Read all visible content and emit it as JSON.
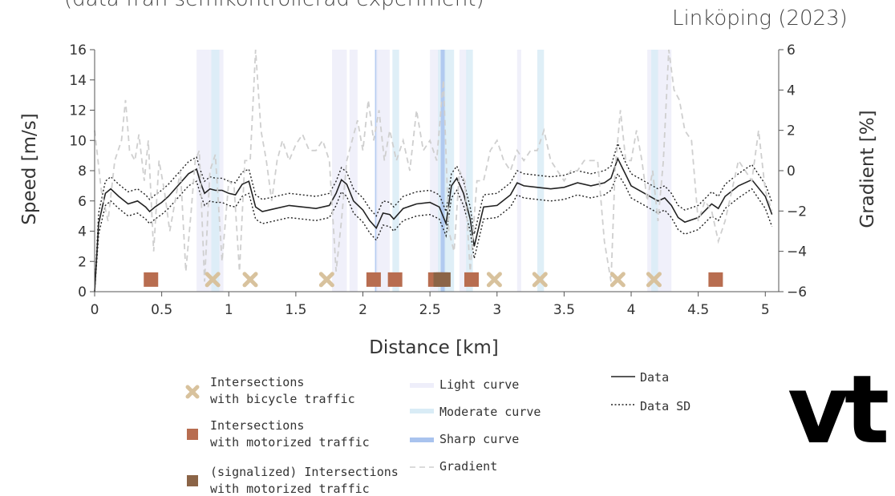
{
  "header": {
    "subtitle": "(data från semikontrollerad experiment)",
    "location_year": "Linköping (2023)"
  },
  "logo": {
    "text": "vt"
  },
  "colors": {
    "bicycle": "#d8c29d",
    "motorized": "#b86d50",
    "signalized": "#8b6447",
    "light_curve": "#eeeefa",
    "moderate_curve": "#d9ecf6",
    "sharp_curve": "#a9c3ee",
    "gradient": "#cfcfcf",
    "data": "#222222"
  },
  "chart_data": {
    "type": "line",
    "xlabel": "Distance [km]",
    "ylabel": "Speed [m/s]",
    "y2label": "Gradient [%]",
    "xlim": [
      0,
      5.1
    ],
    "ylim": [
      0,
      16
    ],
    "y2lim": [
      -6,
      6
    ],
    "xticks": [
      0,
      0.5,
      1,
      1.5,
      2,
      2.5,
      3,
      3.5,
      4,
      4.5,
      5
    ],
    "xtick_labels": [
      "0",
      "0.5",
      "1",
      "1.5",
      "2",
      "2.5",
      "3",
      "3.5",
      "4",
      "4.5",
      "5"
    ],
    "yticks": [
      0,
      2,
      4,
      6,
      8,
      10,
      12,
      14,
      16
    ],
    "ytick_labels": [
      "0",
      "2",
      "4",
      "6",
      "8",
      "10",
      "12",
      "14",
      "16"
    ],
    "y2ticks": [
      -6,
      -4,
      -2,
      0,
      2,
      4,
      6
    ],
    "y2tick_labels": [
      "−6",
      "−4",
      "−2",
      "0",
      "2",
      "4",
      "6"
    ],
    "grid": false,
    "legend_position": "bottom",
    "series": [
      {
        "name": "Data",
        "axis": "left",
        "style": "solid",
        "x": [
          0,
          0.03,
          0.08,
          0.12,
          0.18,
          0.25,
          0.32,
          0.38,
          0.41,
          0.45,
          0.5,
          0.55,
          0.62,
          0.7,
          0.76,
          0.79,
          0.82,
          0.86,
          0.9,
          0.95,
          1.0,
          1.05,
          1.1,
          1.15,
          1.2,
          1.25,
          1.35,
          1.45,
          1.55,
          1.65,
          1.75,
          1.8,
          1.84,
          1.88,
          1.93,
          2.0,
          2.05,
          2.1,
          2.15,
          2.2,
          2.23,
          2.3,
          2.4,
          2.5,
          2.57,
          2.62,
          2.66,
          2.7,
          2.75,
          2.8,
          2.83,
          2.9,
          3.0,
          3.1,
          3.15,
          3.2,
          3.3,
          3.4,
          3.5,
          3.6,
          3.7,
          3.8,
          3.85,
          3.9,
          3.95,
          4.0,
          4.1,
          4.2,
          4.25,
          4.3,
          4.35,
          4.4,
          4.5,
          4.6,
          4.65,
          4.7,
          4.8,
          4.9,
          5.0,
          5.05
        ],
        "y": [
          0,
          4.5,
          6.5,
          6.8,
          6.3,
          5.8,
          6.0,
          5.6,
          5.3,
          5.6,
          5.9,
          6.3,
          7.0,
          7.8,
          8.1,
          7.2,
          6.5,
          6.8,
          6.7,
          6.7,
          6.5,
          6.4,
          7.1,
          7.3,
          5.6,
          5.3,
          5.5,
          5.7,
          5.6,
          5.5,
          5.7,
          6.5,
          7.4,
          7.1,
          6.0,
          5.4,
          4.7,
          4.2,
          5.2,
          5.1,
          4.8,
          5.5,
          5.8,
          5.9,
          5.6,
          4.5,
          7.0,
          7.5,
          6.5,
          4.8,
          3.0,
          5.6,
          5.7,
          6.4,
          7.2,
          7.0,
          6.9,
          6.8,
          6.9,
          7.2,
          7.0,
          7.2,
          7.5,
          8.8,
          7.9,
          7.0,
          6.5,
          6.0,
          6.2,
          5.7,
          4.9,
          4.6,
          4.9,
          5.8,
          5.5,
          6.3,
          7.0,
          7.4,
          6.3,
          5.1
        ]
      },
      {
        "name": "Data SD",
        "axis": "left",
        "style": "dotted",
        "x": [
          0,
          0.03,
          0.08,
          0.12,
          0.18,
          0.25,
          0.32,
          0.38,
          0.41,
          0.45,
          0.5,
          0.55,
          0.62,
          0.7,
          0.76,
          0.79,
          0.82,
          0.86,
          0.9,
          0.95,
          1.0,
          1.05,
          1.1,
          1.15,
          1.2,
          1.25,
          1.35,
          1.45,
          1.55,
          1.65,
          1.75,
          1.8,
          1.84,
          1.88,
          1.93,
          2.0,
          2.05,
          2.1,
          2.15,
          2.2,
          2.23,
          2.3,
          2.4,
          2.5,
          2.57,
          2.62,
          2.66,
          2.7,
          2.75,
          2.8,
          2.83,
          2.9,
          3.0,
          3.1,
          3.15,
          3.2,
          3.3,
          3.4,
          3.5,
          3.6,
          3.7,
          3.8,
          3.85,
          3.9,
          3.95,
          4.0,
          4.1,
          4.2,
          4.25,
          4.3,
          4.35,
          4.4,
          4.5,
          4.6,
          4.65,
          4.7,
          4.8,
          4.9,
          5.0,
          5.05
        ],
        "y": [
          0,
          5.2,
          7.3,
          7.6,
          7.1,
          6.6,
          6.8,
          6.4,
          6.1,
          6.4,
          6.7,
          7.1,
          7.8,
          8.6,
          8.9,
          8.0,
          7.3,
          7.6,
          7.5,
          7.5,
          7.3,
          7.2,
          7.9,
          8.1,
          6.4,
          6.1,
          6.3,
          6.5,
          6.4,
          6.3,
          6.5,
          7.3,
          8.2,
          7.9,
          6.8,
          6.2,
          5.5,
          5.0,
          6.0,
          5.9,
          5.6,
          6.3,
          6.6,
          6.7,
          6.4,
          5.3,
          7.8,
          8.3,
          7.3,
          5.6,
          3.8,
          6.4,
          6.5,
          7.2,
          8.0,
          7.8,
          7.7,
          7.6,
          7.7,
          8.0,
          7.8,
          8.0,
          8.3,
          9.8,
          8.7,
          7.8,
          7.3,
          6.8,
          7.0,
          6.5,
          5.7,
          5.4,
          5.7,
          6.6,
          6.3,
          7.1,
          7.8,
          8.4,
          7.1,
          5.9
        ]
      },
      {
        "name": "Data SD",
        "axis": "left",
        "style": "dotted",
        "x": [
          0,
          0.03,
          0.08,
          0.12,
          0.18,
          0.25,
          0.32,
          0.38,
          0.41,
          0.45,
          0.5,
          0.55,
          0.62,
          0.7,
          0.76,
          0.79,
          0.82,
          0.86,
          0.9,
          0.95,
          1.0,
          1.05,
          1.1,
          1.15,
          1.2,
          1.25,
          1.35,
          1.45,
          1.55,
          1.65,
          1.75,
          1.8,
          1.84,
          1.88,
          1.93,
          2.0,
          2.05,
          2.1,
          2.15,
          2.2,
          2.23,
          2.3,
          2.4,
          2.5,
          2.57,
          2.62,
          2.66,
          2.7,
          2.75,
          2.8,
          2.83,
          2.9,
          3.0,
          3.1,
          3.15,
          3.2,
          3.3,
          3.4,
          3.5,
          3.6,
          3.7,
          3.8,
          3.85,
          3.9,
          3.95,
          4.0,
          4.1,
          4.2,
          4.25,
          4.3,
          4.35,
          4.4,
          4.5,
          4.6,
          4.65,
          4.7,
          4.8,
          4.9,
          5.0,
          5.05
        ],
        "y": [
          0,
          3.8,
          5.7,
          6.0,
          5.5,
          5.0,
          5.2,
          4.8,
          4.5,
          4.8,
          5.1,
          5.5,
          6.2,
          7.0,
          7.3,
          6.4,
          5.7,
          6.0,
          5.9,
          5.9,
          5.7,
          5.6,
          6.3,
          6.5,
          4.8,
          4.5,
          4.7,
          4.9,
          4.8,
          4.7,
          4.9,
          5.7,
          6.6,
          6.3,
          5.2,
          4.6,
          3.9,
          3.4,
          4.4,
          4.3,
          4.0,
          4.7,
          5.0,
          5.1,
          4.8,
          3.7,
          6.2,
          6.7,
          5.7,
          4.0,
          2.2,
          4.8,
          4.9,
          5.6,
          6.4,
          6.2,
          6.1,
          6.0,
          6.1,
          6.4,
          6.2,
          6.4,
          6.7,
          7.8,
          7.1,
          6.2,
          5.7,
          5.2,
          5.4,
          4.9,
          4.1,
          3.8,
          4.1,
          5.0,
          4.7,
          5.5,
          6.2,
          6.8,
          5.5,
          4.3
        ]
      },
      {
        "name": "Gradient",
        "axis": "right",
        "style": "dashed",
        "x": [
          0,
          0.05,
          0.1,
          0.15,
          0.2,
          0.23,
          0.26,
          0.3,
          0.33,
          0.37,
          0.4,
          0.44,
          0.48,
          0.52,
          0.56,
          0.6,
          0.64,
          0.68,
          0.72,
          0.75,
          0.78,
          0.82,
          0.86,
          0.9,
          0.95,
          1.0,
          1.04,
          1.08,
          1.12,
          1.16,
          1.2,
          1.24,
          1.28,
          1.32,
          1.36,
          1.4,
          1.45,
          1.5,
          1.55,
          1.6,
          1.65,
          1.7,
          1.75,
          1.8,
          1.84,
          1.88,
          1.92,
          1.96,
          2.0,
          2.04,
          2.08,
          2.12,
          2.16,
          2.2,
          2.25,
          2.3,
          2.35,
          2.4,
          2.45,
          2.5,
          2.55,
          2.6,
          2.64,
          2.68,
          2.72,
          2.76,
          2.8,
          2.85,
          2.9,
          2.95,
          3.0,
          3.05,
          3.1,
          3.15,
          3.2,
          3.25,
          3.3,
          3.35,
          3.4,
          3.45,
          3.5,
          3.55,
          3.6,
          3.65,
          3.7,
          3.75,
          3.8,
          3.85,
          3.88,
          3.92,
          3.96,
          4.0,
          4.04,
          4.08,
          4.12,
          4.16,
          4.2,
          4.24,
          4.28,
          4.32,
          4.36,
          4.4,
          4.45,
          4.5,
          4.55,
          4.6,
          4.65,
          4.7,
          4.75,
          4.8,
          4.85,
          4.9,
          4.95,
          5.0,
          5.05
        ],
        "y": [
          2.0,
          -1.0,
          -2.5,
          0.5,
          1.5,
          3.5,
          1.0,
          0.5,
          1.8,
          -0.5,
          1.5,
          -4.0,
          0.5,
          -1.0,
          -3.0,
          -1.5,
          0.0,
          -5.0,
          -2.0,
          0.5,
          1.0,
          -5.5,
          0.0,
          0.8,
          -4.5,
          -0.5,
          -0.8,
          -5.0,
          0.5,
          0.5,
          6.0,
          2.0,
          0.5,
          -1.5,
          0.5,
          1.5,
          0.5,
          1.3,
          1.8,
          1.0,
          1.0,
          1.5,
          0.5,
          -5.0,
          -2.5,
          0.5,
          1.5,
          2.5,
          1.0,
          3.5,
          1.5,
          3.0,
          0.5,
          2.0,
          0.5,
          1.5,
          0.0,
          3.0,
          1.0,
          1.5,
          0.5,
          4.5,
          -3.0,
          -4.0,
          0.0,
          -0.5,
          -5.0,
          -0.5,
          -0.5,
          1.0,
          1.5,
          0.5,
          0.0,
          1.0,
          0.5,
          1.0,
          1.0,
          2.0,
          0.5,
          0.0,
          -0.5,
          0.0,
          0.0,
          0.5,
          0.5,
          0.5,
          -3.5,
          -5.5,
          0.0,
          3.0,
          0.5,
          0.5,
          2.0,
          0.5,
          -1.5,
          0.0,
          -2.5,
          0.5,
          6.0,
          4.0,
          3.5,
          2.0,
          1.5,
          -2.5,
          -1.5,
          -2.0,
          -3.5,
          -2.5,
          -1.0,
          0.5,
          0.0,
          -0.5,
          2.0,
          -1.0,
          -2.0
        ]
      }
    ],
    "curve_bands": [
      {
        "type": "light",
        "x0": 0.76,
        "x1": 0.86
      },
      {
        "type": "light",
        "x0": 0.86,
        "x1": 0.96
      },
      {
        "type": "moderate",
        "x0": 0.87,
        "x1": 0.93
      },
      {
        "type": "light",
        "x0": 1.77,
        "x1": 1.88
      },
      {
        "type": "light",
        "x0": 1.9,
        "x1": 1.96
      },
      {
        "type": "sharp",
        "x0": 2.09,
        "x1": 2.11
      },
      {
        "type": "light",
        "x0": 2.1,
        "x1": 2.2
      },
      {
        "type": "moderate",
        "x0": 2.22,
        "x1": 2.27
      },
      {
        "type": "light",
        "x0": 2.5,
        "x1": 2.57
      },
      {
        "type": "moderate",
        "x0": 2.56,
        "x1": 2.62
      },
      {
        "type": "sharp",
        "x0": 2.58,
        "x1": 2.61
      },
      {
        "type": "moderate",
        "x0": 2.61,
        "x1": 2.68
      },
      {
        "type": "light",
        "x0": 2.72,
        "x1": 2.78
      },
      {
        "type": "moderate",
        "x0": 2.77,
        "x1": 2.82
      },
      {
        "type": "light",
        "x0": 3.15,
        "x1": 3.18
      },
      {
        "type": "moderate",
        "x0": 3.3,
        "x1": 3.35
      },
      {
        "type": "light",
        "x0": 4.12,
        "x1": 4.3
      },
      {
        "type": "moderate",
        "x0": 4.15,
        "x1": 4.2
      }
    ],
    "markers": {
      "bicycle": [
        0.88,
        1.16,
        1.73,
        2.98,
        3.32,
        3.9,
        4.17
      ],
      "motorized": [
        0.42,
        2.08,
        2.24,
        2.54,
        2.81,
        4.63
      ],
      "signalized": [
        2.58,
        2.6
      ]
    },
    "marker_y": 0.8,
    "legend": {
      "bicycle": [
        "Intersections",
        "with bicycle traffic"
      ],
      "motorized": [
        "Intersections",
        "with motorized traffic"
      ],
      "signalized": [
        "(signalized) Intersections",
        "with motorized traffic"
      ],
      "light_curve": "Light curve",
      "moderate_curve": "Moderate curve",
      "sharp_curve": "Sharp curve",
      "gradient": "Gradient",
      "data": "Data",
      "data_sd": "Data SD"
    }
  }
}
